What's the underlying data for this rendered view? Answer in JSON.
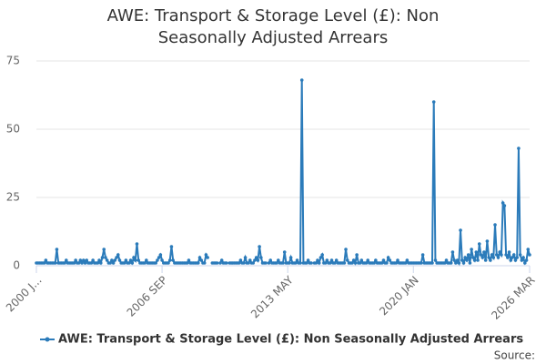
{
  "chart_data": {
    "type": "line",
    "title": "AWE: Transport & Storage Level (£): Non Seasonally Adjusted Arrears",
    "source": "Source:",
    "categories": [
      "2000 J...",
      null,
      null,
      null,
      null,
      null,
      null,
      null,
      null,
      null,
      null,
      null,
      null,
      null,
      null,
      null,
      null,
      null,
      null,
      null,
      null,
      null,
      null,
      null,
      null,
      null,
      null,
      null,
      null,
      null,
      null,
      null,
      null,
      null,
      null,
      null,
      null,
      null,
      null,
      null,
      null,
      null,
      null,
      null,
      null,
      null,
      null,
      null,
      null,
      null,
      null,
      null,
      null,
      null,
      null,
      null,
      null,
      null,
      null,
      null,
      null,
      null,
      null,
      null,
      null,
      null,
      null,
      null,
      null,
      null,
      null,
      null,
      null,
      null,
      null,
      null,
      null,
      null,
      null,
      null,
      "2006 SEP",
      null,
      null,
      null,
      null,
      null,
      null,
      null,
      null,
      null,
      null,
      null,
      null,
      null,
      null,
      null,
      null,
      null,
      null,
      null,
      null,
      null,
      null,
      null,
      null,
      null,
      null,
      null,
      null,
      null,
      null,
      null,
      null,
      null,
      null,
      null,
      null,
      null,
      null,
      null,
      null,
      null,
      null,
      null,
      null,
      null,
      null,
      null,
      null,
      null,
      null,
      null,
      null,
      null,
      null,
      null,
      null,
      null,
      null,
      null,
      null,
      null,
      null,
      null,
      null,
      null,
      null,
      null,
      null,
      null,
      null,
      null,
      null,
      null,
      null,
      null,
      null,
      null,
      null,
      null,
      "2013 MAY",
      null,
      null,
      null,
      null,
      null,
      null,
      null,
      null,
      null,
      null,
      null,
      null,
      null,
      null,
      null,
      null,
      null,
      null,
      null,
      null,
      null,
      null,
      null,
      null,
      null,
      null,
      null,
      null,
      null,
      null,
      null,
      null,
      null,
      null,
      null,
      null,
      null,
      null,
      null,
      null,
      null,
      null,
      null,
      null,
      null,
      null,
      null,
      null,
      null,
      null,
      null,
      null,
      null,
      null,
      null,
      null,
      null,
      null,
      null,
      null,
      null,
      null,
      null,
      null,
      null,
      null,
      null,
      null,
      null,
      null,
      null,
      null,
      null,
      null,
      null,
      null,
      null,
      null,
      null,
      "2020 JAN",
      null,
      null,
      null,
      null,
      null,
      null,
      null,
      null,
      null,
      null,
      null,
      null,
      null,
      null,
      null,
      null,
      null,
      null,
      null,
      null,
      null,
      null,
      null,
      null,
      null,
      null,
      null,
      null,
      null,
      null,
      null,
      null,
      null,
      null,
      null,
      null,
      null,
      null,
      null,
      null,
      null,
      null,
      null,
      null,
      null,
      null,
      null,
      null,
      null,
      null,
      null,
      null,
      null,
      null,
      null,
      null,
      null,
      null,
      null,
      null,
      null,
      null,
      null,
      null,
      null,
      null,
      null,
      null,
      null,
      null,
      null,
      null,
      null,
      "2026 MAR"
    ],
    "series": [
      {
        "name": "AWE: Transport & Storage Level (£): Non Seasonally Adjusted Arrears",
        "color": "#2b7bba",
        "values": [
          1,
          1,
          1,
          1,
          1,
          1,
          2,
          1,
          1,
          1,
          1,
          1,
          1,
          6,
          1,
          1,
          1,
          1,
          1,
          2,
          1,
          1,
          1,
          1,
          1,
          2,
          1,
          1,
          2,
          1,
          2,
          1,
          2,
          1,
          1,
          1,
          2,
          1,
          1,
          1,
          2,
          1,
          3,
          6,
          3,
          2,
          1,
          1,
          2,
          1,
          2,
          3,
          4,
          2,
          1,
          1,
          1,
          2,
          1,
          1,
          2,
          1,
          3,
          2,
          8,
          2,
          1,
          1,
          1,
          1,
          2,
          1,
          1,
          1,
          1,
          1,
          1,
          2,
          3,
          4,
          2,
          1,
          1,
          1,
          1,
          2,
          7,
          2,
          1,
          1,
          1,
          1,
          1,
          1,
          1,
          1,
          1,
          2,
          1,
          1,
          1,
          1,
          1,
          1,
          3,
          2,
          1,
          1,
          4,
          3,
          null,
          null,
          1,
          1,
          1,
          1,
          null,
          1,
          2,
          1,
          1,
          1,
          null,
          1,
          1,
          1,
          1,
          1,
          1,
          1,
          2,
          1,
          1,
          3,
          1,
          1,
          2,
          1,
          1,
          2,
          3,
          2,
          7,
          3,
          1,
          1,
          1,
          null,
          1,
          2,
          1,
          1,
          1,
          1,
          2,
          1,
          1,
          1,
          5,
          1,
          1,
          1,
          3,
          1,
          1,
          1,
          2,
          1,
          1,
          68,
          1,
          1,
          1,
          2,
          1,
          1,
          null,
          1,
          1,
          2,
          1,
          3,
          4,
          1,
          1,
          2,
          1,
          1,
          2,
          1,
          1,
          2,
          1,
          1,
          1,
          1,
          1,
          6,
          2,
          1,
          1,
          1,
          2,
          1,
          4,
          1,
          1,
          2,
          1,
          1,
          1,
          2,
          1,
          1,
          1,
          1,
          2,
          1,
          1,
          1,
          1,
          2,
          1,
          1,
          3,
          2,
          1,
          1,
          1,
          1,
          2,
          1,
          1,
          1,
          1,
          1,
          2,
          1,
          1,
          1,
          1,
          1,
          1,
          1,
          1,
          1,
          4,
          1,
          1,
          1,
          1,
          1,
          1,
          60,
          2,
          1,
          1,
          1,
          1,
          1,
          1,
          2,
          1,
          1,
          1,
          5,
          2,
          1,
          2,
          1,
          13,
          2,
          1,
          3,
          2,
          4,
          1,
          6,
          3,
          2,
          5,
          2,
          8,
          4,
          3,
          5,
          2,
          9,
          3,
          2,
          4,
          3,
          15,
          4,
          3,
          5,
          4,
          23,
          22,
          4,
          3,
          5,
          2,
          3,
          4,
          2,
          3,
          43,
          4,
          2,
          3,
          1,
          2,
          6,
          4
        ]
      }
    ],
    "ylim": [
      0,
      75
    ],
    "yticks": [
      0,
      25,
      50,
      75
    ],
    "grid": true
  }
}
